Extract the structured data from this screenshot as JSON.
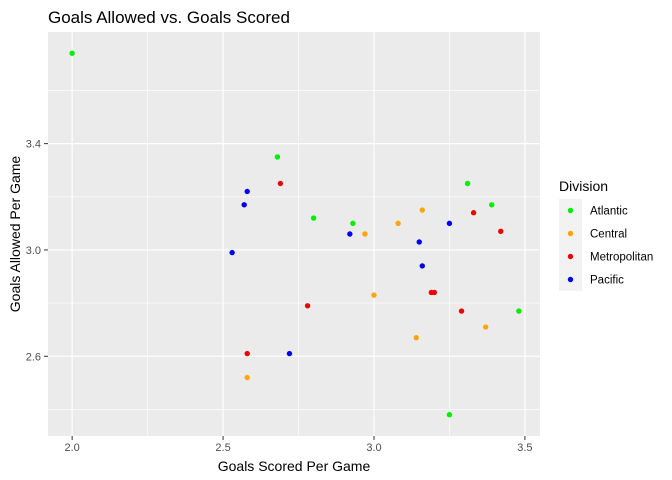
{
  "chart_data": {
    "type": "scatter",
    "title": "Goals Allowed vs. Goals Scored",
    "xlabel": "Goals Scored Per Game",
    "ylabel": "Goals Allowed Per Game",
    "xlim": [
      1.92,
      3.55
    ],
    "ylim": [
      2.3,
      3.82
    ],
    "x_ticks": [
      2.0,
      2.5,
      3.0,
      3.5
    ],
    "x_tick_labels": [
      "2.0",
      "2.5",
      "3.0",
      "3.5"
    ],
    "y_ticks": [
      2.6,
      3.0,
      3.4
    ],
    "y_tick_labels": [
      "2.6",
      "3.0",
      "3.4"
    ],
    "grid": true,
    "legend": {
      "title": "Division",
      "position": "right"
    },
    "series": [
      {
        "name": "Atlantic",
        "color": "#00ee00",
        "points": [
          [
            2.0,
            3.74
          ],
          [
            2.68,
            3.35
          ],
          [
            2.8,
            3.12
          ],
          [
            2.93,
            3.1
          ],
          [
            3.31,
            3.25
          ],
          [
            3.39,
            3.17
          ],
          [
            3.48,
            2.77
          ],
          [
            3.25,
            2.38
          ]
        ]
      },
      {
        "name": "Central",
        "color": "#ffa500",
        "points": [
          [
            2.97,
            3.06
          ],
          [
            3.08,
            3.1
          ],
          [
            3.16,
            3.15
          ],
          [
            3.0,
            2.83
          ],
          [
            3.14,
            2.67
          ],
          [
            3.37,
            2.71
          ],
          [
            2.58,
            2.52
          ]
        ]
      },
      {
        "name": "Metropolitan",
        "color": "#ee0000",
        "points": [
          [
            2.69,
            3.25
          ],
          [
            3.33,
            3.14
          ],
          [
            3.42,
            3.07
          ],
          [
            3.19,
            2.84
          ],
          [
            3.2,
            2.84
          ],
          [
            2.78,
            2.79
          ],
          [
            3.29,
            2.77
          ],
          [
            2.58,
            2.61
          ]
        ]
      },
      {
        "name": "Pacific",
        "color": "#0000ee",
        "points": [
          [
            2.58,
            3.22
          ],
          [
            2.57,
            3.17
          ],
          [
            2.53,
            2.99
          ],
          [
            2.92,
            3.06
          ],
          [
            3.15,
            3.03
          ],
          [
            3.25,
            3.1
          ],
          [
            3.16,
            2.94
          ],
          [
            2.72,
            2.61
          ]
        ]
      }
    ]
  }
}
